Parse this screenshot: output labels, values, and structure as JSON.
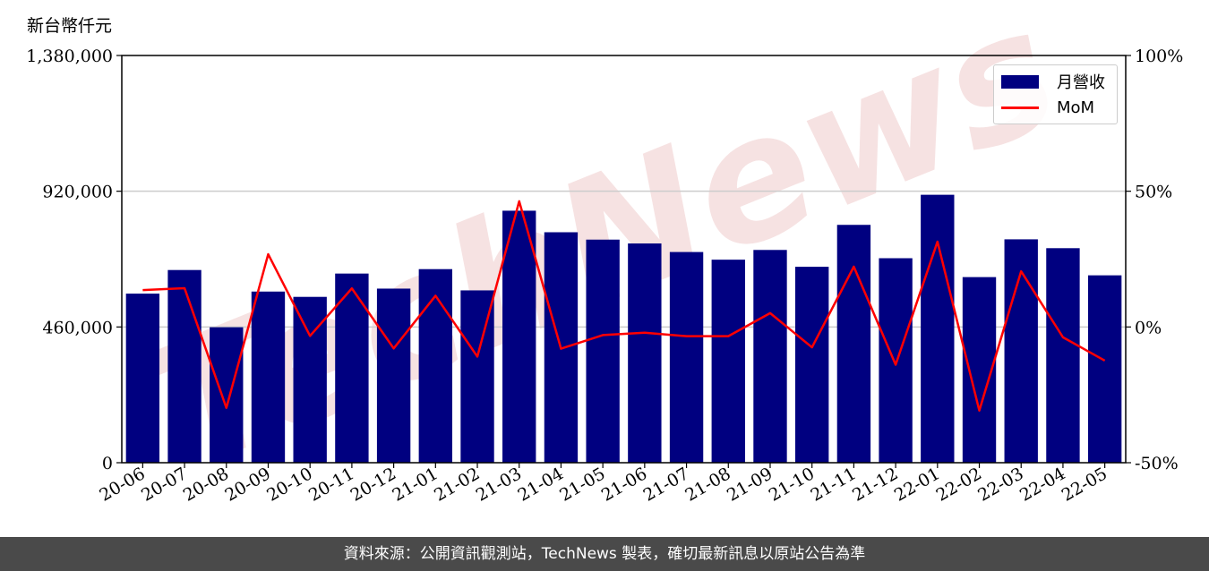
{
  "unit_label": "新台幣仟元",
  "footer": "資料來源：公開資訊觀測站，TechNews 製表，確切最新訊息以原站公告為準",
  "legend": {
    "bar": "月營收",
    "line": "MoM"
  },
  "colors": {
    "bar": "#000080",
    "line": "#ff0000",
    "grid": "#cccccc",
    "watermark": "#f3d6d6"
  },
  "chart_data": {
    "type": "bar",
    "categories": [
      "20-06",
      "20-07",
      "20-08",
      "20-09",
      "20-10",
      "20-11",
      "20-12",
      "21-01",
      "21-02",
      "21-03",
      "21-04",
      "21-05",
      "21-06",
      "21-07",
      "21-08",
      "21-09",
      "21-10",
      "21-11",
      "21-12",
      "22-01",
      "22-02",
      "22-03",
      "22-04",
      "22-05"
    ],
    "series": [
      {
        "name": "月營收",
        "axis": "left",
        "type": "bar",
        "values": [
          573000,
          653000,
          459000,
          580000,
          562000,
          641000,
          590000,
          656000,
          584000,
          854000,
          781000,
          756000,
          743000,
          714000,
          688000,
          721000,
          664000,
          806000,
          693000,
          908000,
          629000,
          757000,
          727000,
          635000
        ]
      },
      {
        "name": "MoM",
        "axis": "right",
        "type": "line",
        "values": [
          13.6,
          14.3,
          -29.8,
          26.8,
          -3.3,
          14.2,
          -7.9,
          11.5,
          -10.9,
          46.3,
          -8.0,
          -3.0,
          -2.1,
          -3.4,
          -3.4,
          5.1,
          -7.5,
          22.2,
          -13.9,
          31.4,
          -30.8,
          20.5,
          -3.8,
          -12.4
        ]
      }
    ],
    "y_left": {
      "ticks": [
        0,
        460000,
        920000,
        1380000
      ],
      "tick_labels": [
        "0",
        "460,000",
        "920,000",
        "1,380,000"
      ],
      "ylim": [
        0,
        1380000
      ]
    },
    "y_right": {
      "ticks": [
        -50,
        0,
        50,
        100
      ],
      "tick_labels": [
        "-50%",
        "0%",
        "50%",
        "100%"
      ],
      "ylim": [
        -50,
        100
      ]
    },
    "grid": "horizontal",
    "legend_position": "top-right",
    "watermark": "TechNews"
  }
}
